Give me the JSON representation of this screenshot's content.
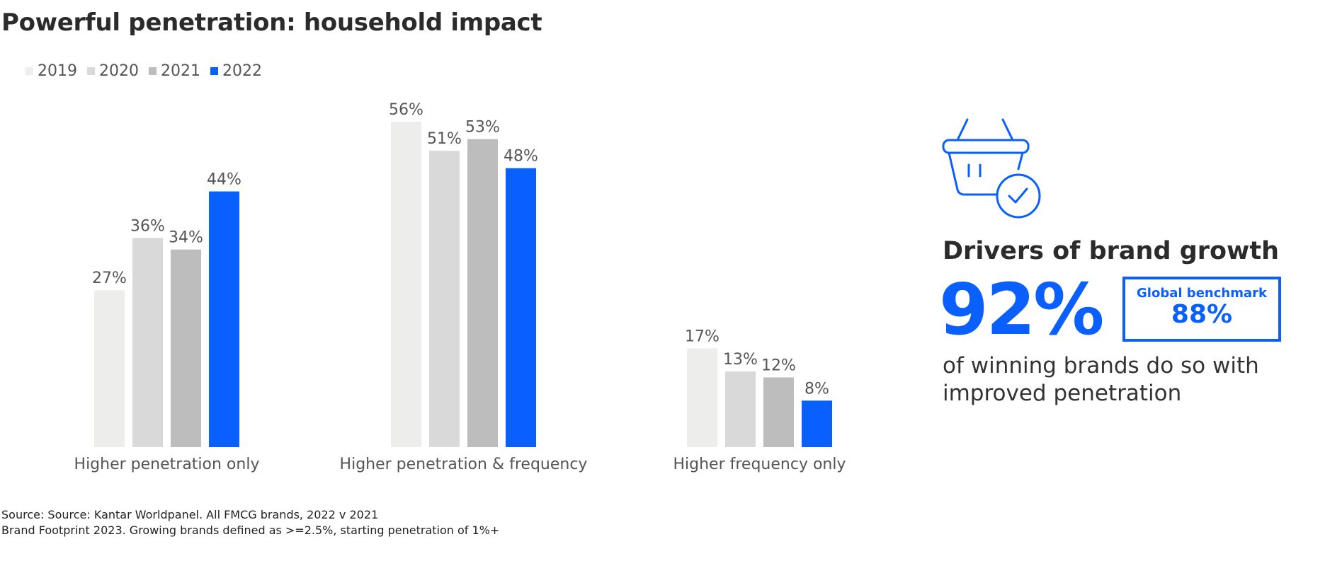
{
  "title": "Powerful penetration: household impact",
  "legend": [
    {
      "label": "2019",
      "color": "#ededeb"
    },
    {
      "label": "2020",
      "color": "#d9d9d9"
    },
    {
      "label": "2021",
      "color": "#bdbdbd"
    },
    {
      "label": "2022",
      "color": "#0a5fff"
    }
  ],
  "chart_data": {
    "type": "bar",
    "categories": [
      "Higher penetration only",
      "Higher penetration & frequency",
      "Higher frequency only"
    ],
    "series": [
      {
        "name": "2019",
        "color": "#ededeb",
        "values": [
          27,
          56,
          17
        ]
      },
      {
        "name": "2020",
        "color": "#d9d9d9",
        "values": [
          36,
          51,
          13
        ]
      },
      {
        "name": "2021",
        "color": "#bdbdbd",
        "values": [
          34,
          53,
          12
        ]
      },
      {
        "name": "2022",
        "color": "#0a5fff",
        "values": [
          44,
          48,
          8
        ]
      }
    ],
    "value_suffix": "%",
    "ylim": [
      0,
      56
    ],
    "grid": false,
    "legend_position": "top-left"
  },
  "side_panel": {
    "icon": "shopping-basket-check-icon",
    "heading": "Drivers of brand growth",
    "big_stat": "92%",
    "benchmark_label": "Global benchmark",
    "benchmark_value": "88%",
    "description": "of winning brands do so with improved penetration"
  },
  "source_lines": [
    "Source: Source: Kantar Worldpanel. All FMCG brands, 2022 v 2021",
    "Brand Footprint 2023. Growing brands defined as >=2.5%, starting penetration of 1%+"
  ],
  "colors": {
    "accent": "#0a5fff",
    "text": "#2b2b2b",
    "muted": "#555555"
  }
}
